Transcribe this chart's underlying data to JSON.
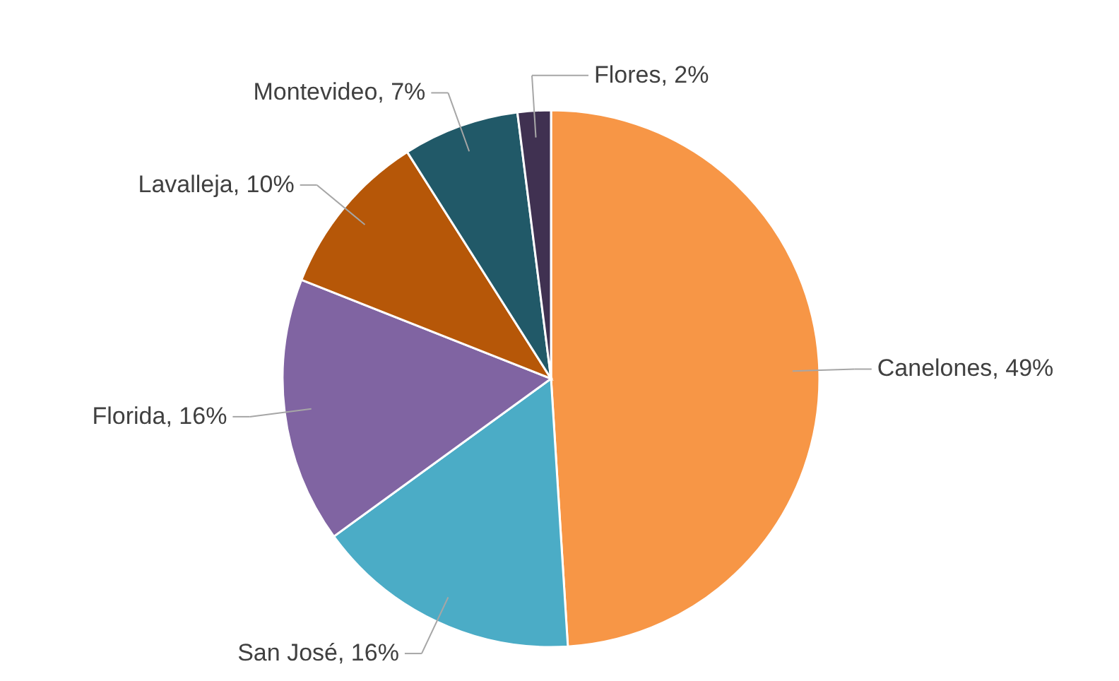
{
  "chart_data": {
    "type": "pie",
    "categories": [
      "Canelones",
      "San José",
      "Florida",
      "Lavalleja",
      "Montevideo",
      "Flores"
    ],
    "values": [
      49,
      16,
      16,
      10,
      7,
      2
    ],
    "value_labels": [
      "49%",
      "16%",
      "16%",
      "10%",
      "7%",
      "2%"
    ],
    "colors": [
      "#f79646",
      "#4bacc6",
      "#8064a2",
      "#b65708",
      "#215968",
      "#403151"
    ]
  }
}
